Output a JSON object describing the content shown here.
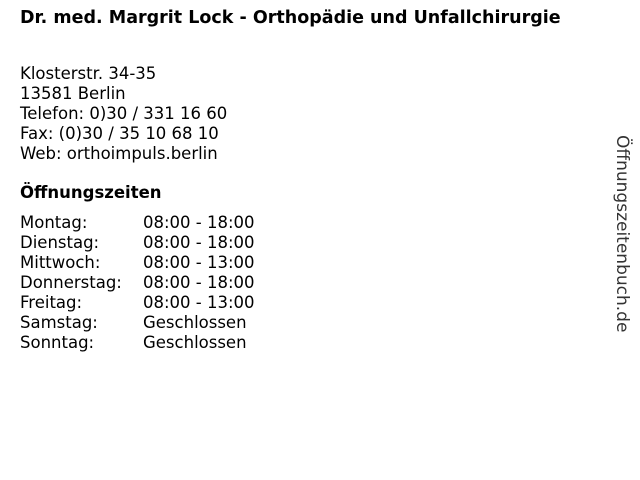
{
  "title": "Dr. med. Margrit Lock - Orthopädie und Unfallchirurgie",
  "address": [
    "Klosterstr. 34-35",
    "13581 Berlin",
    "Telefon: 0)30 / 331 16 60",
    "Fax: (0)30 / 35 10 68 10",
    "Web: orthoimpuls.berlin"
  ],
  "hours_heading": "Öffnungszeiten",
  "hours": [
    {
      "day": "Montag:",
      "time": "08:00 - 18:00"
    },
    {
      "day": "Dienstag:",
      "time": "08:00 - 18:00"
    },
    {
      "day": "Mittwoch:",
      "time": "08:00 - 13:00"
    },
    {
      "day": "Donnerstag:",
      "time": "08:00 - 18:00"
    },
    {
      "day": "Freitag:",
      "time": "08:00 - 13:00"
    },
    {
      "day": "Samstag:",
      "time": "Geschlossen"
    },
    {
      "day": "Sonntag:",
      "time": "Geschlossen"
    }
  ],
  "brand": "Öffnungszeitenbuch.de"
}
